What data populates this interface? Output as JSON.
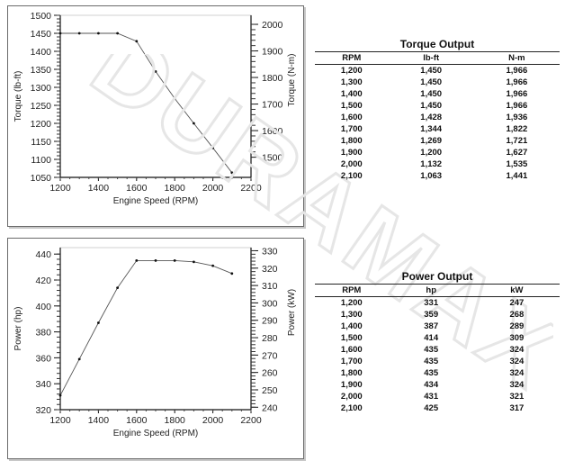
{
  "torque_chart": {
    "xlabel": "Engine Speed (RPM)",
    "ylabel": "Torque (lb-ft)",
    "y2label": "Torque (N-m)",
    "x_ticks": [
      "1200",
      "1400",
      "1600",
      "1800",
      "2000",
      "2200"
    ],
    "y_ticks": [
      "1050",
      "1100",
      "1150",
      "1200",
      "1250",
      "1300",
      "1350",
      "1400",
      "1450",
      "1500"
    ],
    "y2_ticks": [
      "1500",
      "1600",
      "1700",
      "1800",
      "1900",
      "2000"
    ]
  },
  "power_chart": {
    "xlabel": "Engine Speed (RPM)",
    "ylabel": "Power (hp)",
    "y2label": "Power (kW)",
    "x_ticks": [
      "1200",
      "1400",
      "1600",
      "1800",
      "2000",
      "2200"
    ],
    "y_ticks": [
      "320",
      "340",
      "360",
      "380",
      "400",
      "420",
      "440"
    ],
    "y2_ticks": [
      "240",
      "250",
      "260",
      "270",
      "280",
      "290",
      "300",
      "310",
      "320",
      "330"
    ]
  },
  "chart_data": [
    {
      "type": "line",
      "xlabel": "Engine Speed (RPM)",
      "ylabel": "Torque (lb-ft)",
      "y2label": "Torque (N-m)",
      "xlim": [
        1200,
        2200
      ],
      "ylim": [
        1050,
        1500
      ],
      "y2lim": [
        1424,
        2034
      ],
      "grid": false,
      "series": [
        {
          "x": [
            1200,
            1300,
            1400,
            1500,
            1600,
            1700,
            1800,
            1900,
            2000,
            2100
          ],
          "values": [
            1450,
            1450,
            1450,
            1450,
            1428,
            1344,
            1269,
            1200,
            1132,
            1063
          ]
        }
      ]
    },
    {
      "type": "line",
      "xlabel": "Engine Speed (RPM)",
      "ylabel": "Power (hp)",
      "y2label": "Power (kW)",
      "xlim": [
        1200,
        2200
      ],
      "ylim": [
        320,
        445
      ],
      "y2lim": [
        238.6,
        331.8
      ],
      "grid": false,
      "series": [
        {
          "x": [
            1200,
            1300,
            1400,
            1500,
            1600,
            1700,
            1800,
            1900,
            2000,
            2100
          ],
          "values": [
            331,
            359,
            387,
            414,
            435,
            435,
            435,
            434,
            431,
            425
          ]
        }
      ]
    }
  ],
  "torque_table": {
    "title": "Torque Output",
    "headers": [
      "RPM",
      "lb-ft",
      "N-m"
    ],
    "rows": [
      [
        "1,200",
        "1,450",
        "1,966"
      ],
      [
        "1,300",
        "1,450",
        "1,966"
      ],
      [
        "1,400",
        "1,450",
        "1,966"
      ],
      [
        "1,500",
        "1,450",
        "1,966"
      ],
      [
        "1,600",
        "1,428",
        "1,936"
      ],
      [
        "1,700",
        "1,344",
        "1,822"
      ],
      [
        "1,800",
        "1,269",
        "1,721"
      ],
      [
        "1,900",
        "1,200",
        "1,627"
      ],
      [
        "2,000",
        "1,132",
        "1,535"
      ],
      [
        "2,100",
        "1,063",
        "1,441"
      ]
    ]
  },
  "power_table": {
    "title": "Power Output",
    "headers": [
      "RPM",
      "hp",
      "kW"
    ],
    "rows": [
      [
        "1,200",
        "331",
        "247"
      ],
      [
        "1,300",
        "359",
        "268"
      ],
      [
        "1,400",
        "387",
        "289"
      ],
      [
        "1,500",
        "414",
        "309"
      ],
      [
        "1,600",
        "435",
        "324"
      ],
      [
        "1,700",
        "435",
        "324"
      ],
      [
        "1,800",
        "435",
        "324"
      ],
      [
        "1,900",
        "434",
        "324"
      ],
      [
        "2,000",
        "431",
        "321"
      ],
      [
        "2,100",
        "425",
        "317"
      ]
    ]
  },
  "watermark": {
    "text": "DURAMAX",
    "color": "#e6e6e6"
  }
}
